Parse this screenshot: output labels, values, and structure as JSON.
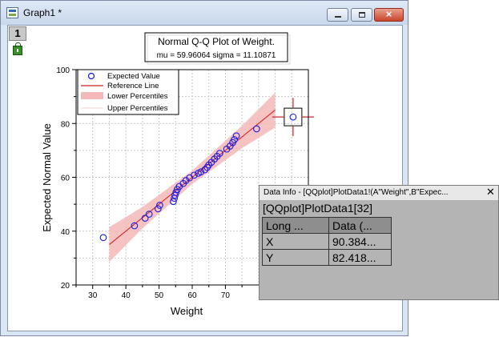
{
  "window": {
    "title": "Graph1 *",
    "layer_label": "1",
    "close_glyph": "×"
  },
  "plot": {
    "title": "Normal Q-Q Plot of Weight.",
    "subtitle": "mu = 59.96064  sigma = 11.10871",
    "xlabel": "Weight",
    "ylabel": "Expected Normal Value",
    "legend": [
      "Expected Value",
      "Reference Line",
      "Lower Percentiles",
      "Upper Percentiles"
    ]
  },
  "chart_data": {
    "type": "scatter",
    "title": "Normal Q-Q Plot of Weight.",
    "subtitle": "mu = 59.96064  sigma = 11.10871",
    "xlabel": "Weight",
    "ylabel": "Expected Normal Value",
    "xlim": [
      25,
      95
    ],
    "ylim": [
      20,
      100
    ],
    "xticks": [
      30,
      40,
      50,
      60,
      70
    ],
    "yticks": [
      20,
      40,
      60,
      80,
      100
    ],
    "grid": true,
    "legend_position": "top-left",
    "colors": {
      "points": "#1a1adf",
      "reference_line": "#cc2222",
      "band": "#f5b8b8",
      "cursor": "#cc2222"
    },
    "series": [
      {
        "name": "Expected Value",
        "kind": "scatter",
        "points": [
          [
            33.2,
            37.6
          ],
          [
            42.6,
            42.0
          ],
          [
            45.8,
            44.8
          ],
          [
            47.0,
            46.3
          ],
          [
            49.7,
            48.3
          ],
          [
            50.2,
            49.6
          ],
          [
            54.3,
            51.0
          ],
          [
            54.6,
            52.2
          ],
          [
            54.8,
            53.3
          ],
          [
            55.1,
            54.4
          ],
          [
            55.5,
            55.5
          ],
          [
            56.1,
            56.6
          ],
          [
            57.3,
            57.7
          ],
          [
            58.1,
            58.8
          ],
          [
            59.2,
            59.8
          ],
          [
            60.6,
            60.8
          ],
          [
            61.8,
            61.5
          ],
          [
            62.6,
            62.0
          ],
          [
            63.8,
            62.8
          ],
          [
            64.5,
            63.7
          ],
          [
            65.0,
            64.6
          ],
          [
            65.8,
            65.6
          ],
          [
            66.7,
            66.8
          ],
          [
            67.5,
            67.8
          ],
          [
            68.3,
            68.9
          ],
          [
            70.4,
            70.5
          ],
          [
            71.4,
            71.6
          ],
          [
            72.2,
            72.9
          ],
          [
            72.7,
            74.0
          ],
          [
            73.3,
            75.4
          ],
          [
            79.4,
            78.0
          ],
          [
            90.4,
            82.4
          ]
        ]
      },
      {
        "name": "Reference Line",
        "kind": "line",
        "points": [
          [
            35.0,
            35.0
          ],
          [
            85.0,
            85.0
          ]
        ]
      },
      {
        "name": "Lower Percentiles",
        "kind": "band_lower",
        "points": [
          [
            35.0,
            28.5
          ],
          [
            45.0,
            41.0
          ],
          [
            60.0,
            57.5
          ],
          [
            75.0,
            70.8
          ],
          [
            85.0,
            78.5
          ]
        ]
      },
      {
        "name": "Upper Percentiles",
        "kind": "band_upper",
        "points": [
          [
            35.0,
            41.5
          ],
          [
            45.0,
            49.0
          ],
          [
            60.0,
            62.5
          ],
          [
            75.0,
            79.2
          ],
          [
            85.0,
            91.5
          ]
        ]
      }
    ],
    "cursor": {
      "x": 90.384,
      "y": 82.418
    }
  },
  "data_info": {
    "title": "Data Info - [QQplot]PlotData1!(A\"Weight\",B\"Expec...",
    "subtitle": "[QQplot]PlotData1[32]",
    "close_glyph": "✕",
    "headers": [
      "Long ...",
      "Data (..."
    ],
    "rows": [
      {
        "label": "X",
        "value": "90.384..."
      },
      {
        "label": "Y",
        "value": "82.418..."
      }
    ]
  }
}
